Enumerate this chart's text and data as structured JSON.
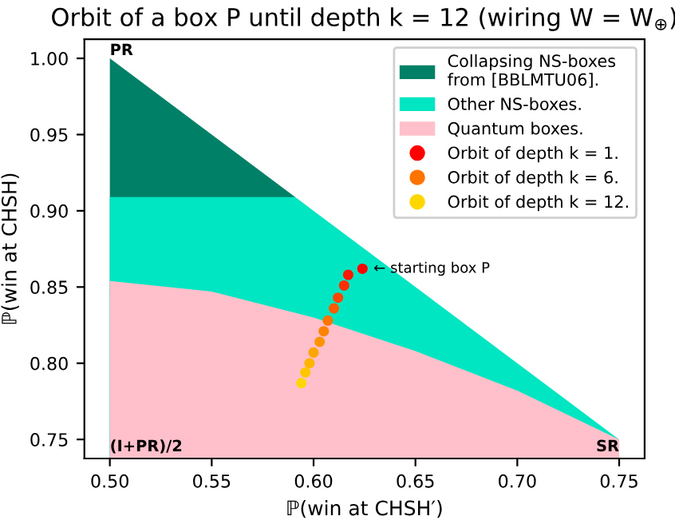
{
  "chart_data": {
    "type": "area",
    "title": "Orbit of a box P until depth k = 12 (wiring W = W$_{⊕}$)",
    "xlabel": "ℙ(win at CHSH′)",
    "ylabel": "ℙ(win at CHSH)",
    "series": [
      {
        "name": "Collapsing NS-boxes\nfrom [BBLMTU06].",
        "color": "#008066",
        "x": [
          0.5,
          0.591
        ],
        "values": [
          1.0,
          0.909
        ]
      },
      {
        "name": "Other NS-boxes.",
        "color": "#00e6c3",
        "x": [
          0.5,
          0.55,
          0.591,
          0.6,
          0.65,
          0.7,
          0.75
        ],
        "values": [
          0.909,
          0.909,
          0.909,
          0.9,
          0.85,
          0.8,
          0.75
        ]
      },
      {
        "name": "Quantum boxes.",
        "color": "#ffc0cb",
        "x": [
          0.5,
          0.55,
          0.6,
          0.65,
          0.7,
          0.75
        ],
        "values": [
          0.854,
          0.847,
          0.83,
          0.808,
          0.782,
          0.75
        ]
      },
      {
        "type": "scatter",
        "marker": "circle",
        "name": "Orbit of depth k = 1.",
        "color": "#ff0000",
        "x": [
          0.624
        ],
        "values": [
          0.862
        ]
      },
      {
        "type": "scatter",
        "marker": "circle",
        "color": "#ff1700",
        "x": [
          0.617
        ],
        "values": [
          0.858
        ]
      },
      {
        "type": "scatter",
        "marker": "circle",
        "color": "#ff2e00",
        "x": [
          0.615
        ],
        "values": [
          0.851
        ]
      },
      {
        "type": "scatter",
        "marker": "circle",
        "color": "#ff4500",
        "x": [
          0.612
        ],
        "values": [
          0.843
        ]
      },
      {
        "type": "scatter",
        "marker": "circle",
        "color": "#ff5c00",
        "x": [
          0.61
        ],
        "values": [
          0.836
        ]
      },
      {
        "type": "scatter",
        "marker": "circle",
        "name": "Orbit of depth k = 6.",
        "color": "#ff7300",
        "x": [
          0.607
        ],
        "values": [
          0.828
        ]
      },
      {
        "type": "scatter",
        "marker": "circle",
        "color": "#ff8300",
        "x": [
          0.605
        ],
        "values": [
          0.821
        ]
      },
      {
        "type": "scatter",
        "marker": "circle",
        "color": "#ff9400",
        "x": [
          0.603
        ],
        "values": [
          0.814
        ]
      },
      {
        "type": "scatter",
        "marker": "circle",
        "color": "#ffa500",
        "x": [
          0.6
        ],
        "values": [
          0.807
        ]
      },
      {
        "type": "scatter",
        "marker": "circle",
        "color": "#ffb500",
        "x": [
          0.598
        ],
        "values": [
          0.8
        ]
      },
      {
        "type": "scatter",
        "marker": "circle",
        "color": "#ffc600",
        "x": [
          0.596
        ],
        "values": [
          0.794
        ]
      },
      {
        "type": "scatter",
        "marker": "circle",
        "name": "Orbit of depth k = 12.",
        "color": "#ffd700",
        "x": [
          0.594
        ],
        "values": [
          0.787
        ]
      }
    ],
    "annotations": [
      {
        "text": "← starting box P",
        "x": 0.624,
        "y": 0.862
      },
      {
        "text": "PR",
        "x": 0.5,
        "y": 1.0
      },
      {
        "text": "(I+PR)/2",
        "x": 0.5,
        "y": 0.75
      },
      {
        "text": "SR",
        "x": 0.75,
        "y": 0.75
      }
    ],
    "xlim": [
      0.4875,
      0.7625
    ],
    "ylim": [
      0.7375,
      1.0125
    ],
    "xticks": [
      {
        "value": 0.5,
        "label": "0.50"
      },
      {
        "value": 0.55,
        "label": "0.55"
      },
      {
        "value": 0.6,
        "label": "0.60"
      },
      {
        "value": 0.65,
        "label": "0.65"
      },
      {
        "value": 0.7,
        "label": "0.70"
      },
      {
        "value": 0.75,
        "label": "0.75"
      }
    ],
    "yticks": [
      {
        "value": 0.75,
        "label": "0.75"
      },
      {
        "value": 0.8,
        "label": "0.80"
      },
      {
        "value": 0.85,
        "label": "0.85"
      },
      {
        "value": 0.9,
        "label": "0.90"
      },
      {
        "value": 0.95,
        "label": "0.95"
      },
      {
        "value": 1.0,
        "label": "1.00"
      }
    ],
    "legend": "top right"
  }
}
